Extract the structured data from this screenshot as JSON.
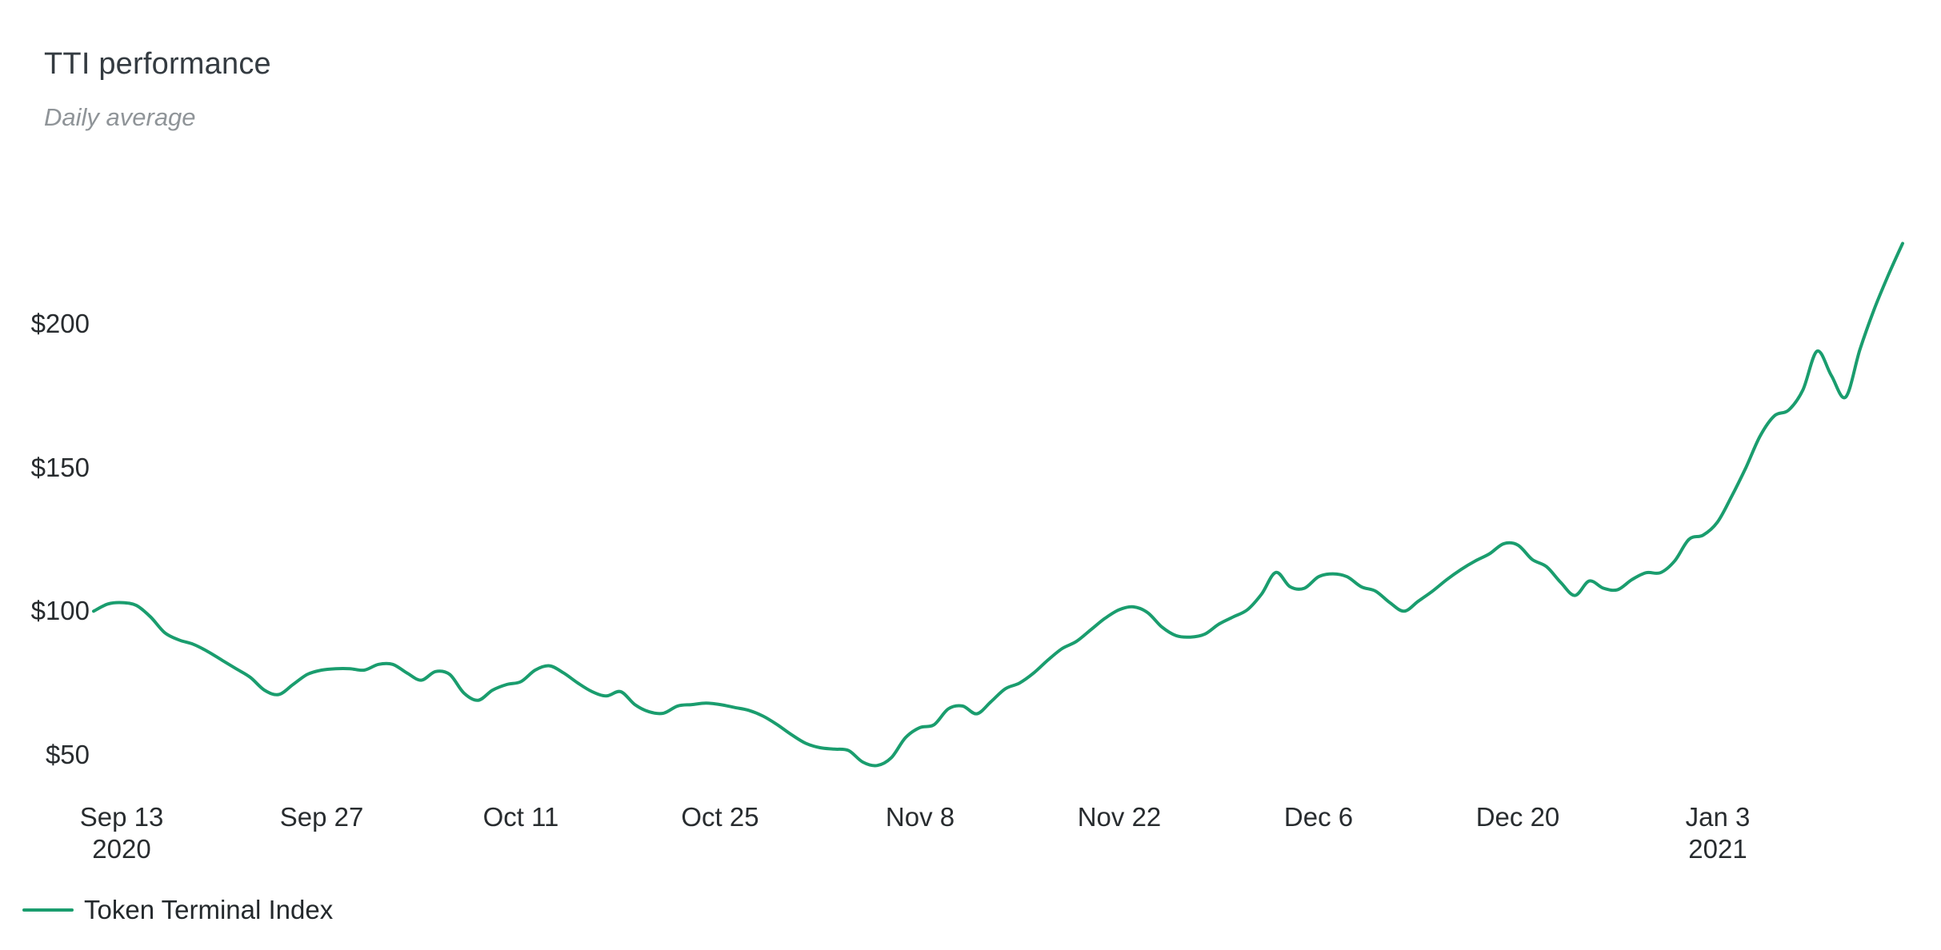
{
  "header": {
    "title": "TTI performance",
    "subtitle": "Daily average"
  },
  "legend": {
    "items": [
      {
        "label": "Token Terminal Index",
        "color": "#1a9d6e"
      }
    ]
  },
  "chart_data": {
    "type": "line",
    "title": "TTI performance",
    "subtitle": "Daily average",
    "grid": "none",
    "legend_position": "bottom-left",
    "y_axis": {
      "prefix": "$",
      "ticks_shown": [
        50,
        100,
        150,
        200
      ],
      "approx_range": [
        40,
        235
      ]
    },
    "x_axis": {
      "start_date": "2020-09-11",
      "end_date": "2021-01-16",
      "frequency": "daily"
    },
    "y_ticks": [
      {
        "label": "$200",
        "value": 200
      },
      {
        "label": "$150",
        "value": 150
      },
      {
        "label": "$100",
        "value": 100
      },
      {
        "label": "$50",
        "value": 50
      }
    ],
    "x_ticks": [
      {
        "label": "Sep 13",
        "sublabel": "2020",
        "day_index": 2
      },
      {
        "label": "Sep 27",
        "sublabel": "",
        "day_index": 16
      },
      {
        "label": "Oct 11",
        "sublabel": "",
        "day_index": 30
      },
      {
        "label": "Oct 25",
        "sublabel": "",
        "day_index": 44
      },
      {
        "label": "Nov 8",
        "sublabel": "",
        "day_index": 58
      },
      {
        "label": "Nov 22",
        "sublabel": "",
        "day_index": 72
      },
      {
        "label": "Dec 6",
        "sublabel": "",
        "day_index": 86
      },
      {
        "label": "Dec 20",
        "sublabel": "",
        "day_index": 100
      },
      {
        "label": "Jan 3",
        "sublabel": "2021",
        "day_index": 114
      }
    ],
    "series": [
      {
        "name": "Token Terminal Index",
        "color": "#1a9d6e",
        "values": [
          100,
          102.5,
          103,
          102,
          98,
          92.5,
          90,
          88.5,
          86,
          83,
          80,
          77,
          72.5,
          71,
          74.5,
          78,
          79.5,
          80,
          80,
          79.5,
          81.5,
          81.5,
          78.5,
          76,
          79,
          78,
          71.5,
          69,
          72.5,
          74.5,
          75.5,
          79.5,
          81,
          78.5,
          75,
          72,
          70.5,
          72,
          67.5,
          65,
          64.5,
          67,
          67.5,
          68,
          67.5,
          66.5,
          65.5,
          63.5,
          60.5,
          57,
          54,
          52.5,
          52,
          51.5,
          47.5,
          46.3,
          49,
          56,
          59.5,
          60.5,
          66,
          67,
          64.3,
          68.5,
          73,
          75,
          78.5,
          83,
          87,
          89.5,
          93.5,
          97.5,
          100.5,
          101.5,
          99.5,
          94.5,
          91.5,
          91,
          92,
          95.5,
          98,
          100.5,
          106,
          113.5,
          108.5,
          108,
          112,
          113,
          112,
          108.5,
          107,
          103,
          100,
          103.5,
          107,
          111,
          114.5,
          117.5,
          120,
          123.5,
          123,
          118,
          115.5,
          110,
          105.5,
          110.5,
          108,
          107.5,
          111,
          113.4,
          113.4,
          117.5,
          125,
          126.5,
          131,
          140,
          150,
          161,
          168,
          170,
          177,
          190.5,
          182,
          174.5,
          191,
          205,
          217,
          228
        ]
      }
    ]
  }
}
